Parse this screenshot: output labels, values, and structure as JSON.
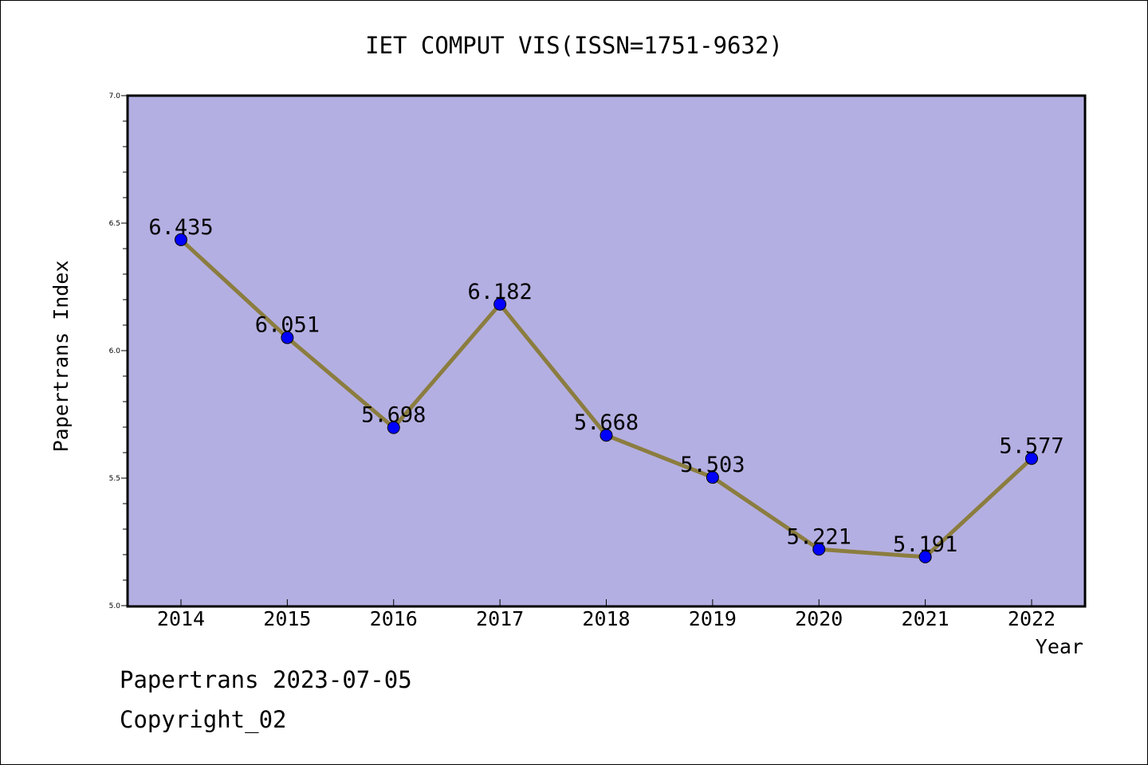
{
  "chart_data": {
    "type": "line",
    "title": "IET COMPUT VIS(ISSN=1751-9632)",
    "xlabel": "Year",
    "ylabel": "Papertrans Index",
    "x": [
      "2014",
      "2015",
      "2016",
      "2017",
      "2018",
      "2019",
      "2020",
      "2021",
      "2022"
    ],
    "series": [
      {
        "values": [
          6.435,
          6.051,
          5.698,
          6.182,
          5.668,
          5.503,
          5.221,
          5.191,
          5.577
        ],
        "labels": [
          "6.435",
          "6.051",
          "5.698",
          "6.182",
          "5.668",
          "5.503",
          "5.221",
          "5.191",
          "5.577"
        ]
      }
    ],
    "ylim": [
      5.0,
      7.0
    ],
    "yticks": [
      "5.0",
      "5.5",
      "6.0",
      "6.5",
      "7.0"
    ],
    "grid": false,
    "colors": {
      "plot_background": "#b4afe2",
      "line": "#8b7d3f",
      "marker": "#0000ff"
    }
  },
  "footer": {
    "date_text": "Papertrans 2023-07-05",
    "copyright": "Copyright_02"
  }
}
